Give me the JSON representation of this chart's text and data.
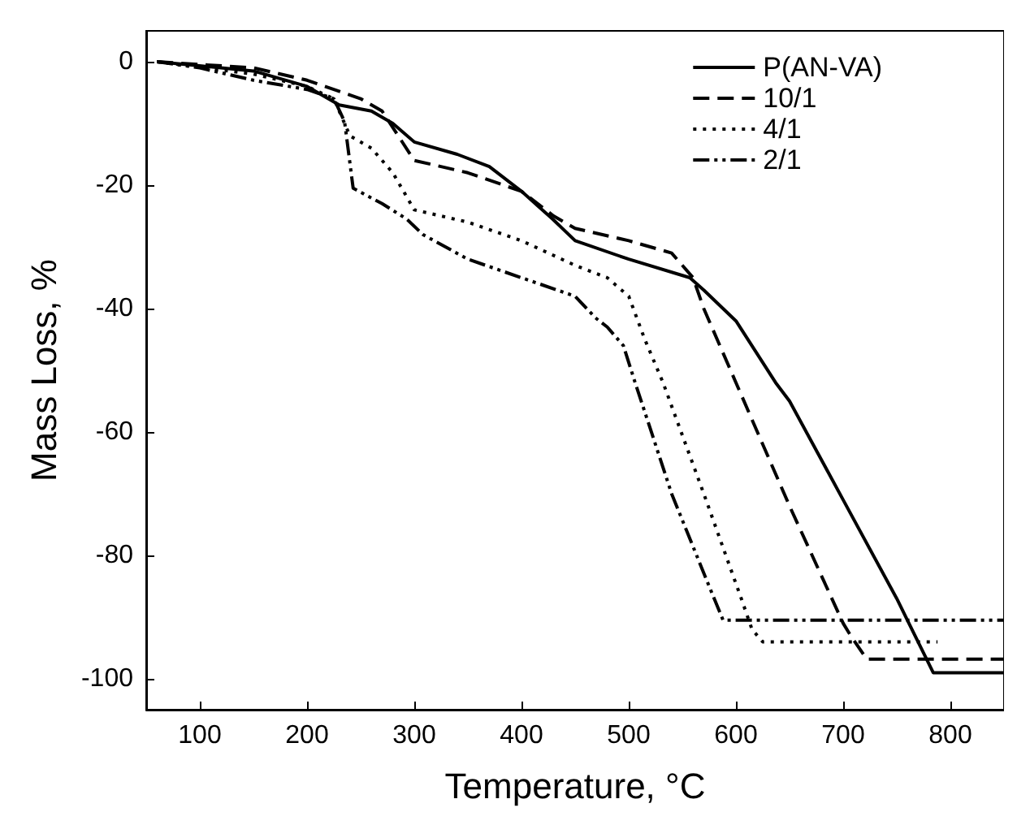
{
  "chart_data": {
    "type": "line",
    "xlabel": "Temperature, °C",
    "ylabel": "Mass Loss, %",
    "xlim": [
      50,
      850
    ],
    "xticks": [
      100,
      200,
      300,
      400,
      500,
      600,
      700,
      800
    ],
    "ylim": [
      -105,
      5
    ],
    "yticks": [
      -100,
      -80,
      -60,
      -40,
      -20,
      0
    ],
    "grid": false,
    "legend": "top right",
    "marker": "none",
    "series": [
      {
        "name": "P(AN-VA)",
        "color": "#000000",
        "line_style": "solid",
        "x": [
          60,
          150,
          200,
          230,
          260,
          280,
          300,
          340,
          370,
          400,
          429,
          450,
          500,
          557,
          570,
          600,
          637,
          650,
          700,
          750,
          784,
          850
        ],
        "values": [
          0,
          -1.5,
          -4,
          -7,
          -8,
          -10,
          -13,
          -15,
          -17,
          -21,
          -25.5,
          -29,
          -32,
          -35,
          -37,
          -42,
          -52,
          -55,
          -71,
          -87,
          -99,
          -99
        ]
      },
      {
        "name": "10/1",
        "color": "#000000",
        "line_style": "dashed",
        "x": [
          60,
          150,
          200,
          250,
          270,
          285,
          300,
          350,
          400,
          430,
          450,
          500,
          540,
          560,
          570,
          600,
          650,
          700,
          707,
          722,
          850
        ],
        "values": [
          0,
          -1,
          -3,
          -6,
          -8,
          -12,
          -16,
          -18,
          -21,
          -25,
          -27,
          -29,
          -31,
          -35,
          -40,
          -52,
          -72,
          -91,
          -93,
          -96.8,
          -96.8
        ]
      },
      {
        "name": "4/1",
        "color": "#000000",
        "line_style": "dotted",
        "x": [
          60,
          150,
          200,
          225,
          240,
          260,
          280,
          300,
          350,
          400,
          450,
          480,
          500,
          515,
          532,
          570,
          605,
          615,
          625,
          788
        ],
        "values": [
          0,
          -2,
          -4,
          -6,
          -12,
          -14,
          -18,
          -24,
          -26,
          -29,
          -33,
          -35,
          -38,
          -45,
          -52,
          -70,
          -87,
          -92,
          -94,
          -94
        ]
      },
      {
        "name": "2/1",
        "color": "#000000",
        "line_style": "dashdot",
        "x": [
          60,
          100,
          150,
          200,
          225,
          235,
          243,
          270,
          293,
          308,
          350,
          400,
          450,
          469,
          480,
          495,
          506,
          540,
          575,
          588,
          850
        ],
        "values": [
          0,
          -1,
          -3,
          -4.5,
          -6,
          -9.7,
          -20.5,
          -23,
          -25.5,
          -28,
          -32,
          -35,
          -38,
          -41.5,
          -43,
          -46,
          -52,
          -70,
          -85,
          -90.5,
          -90.5
        ]
      }
    ]
  }
}
